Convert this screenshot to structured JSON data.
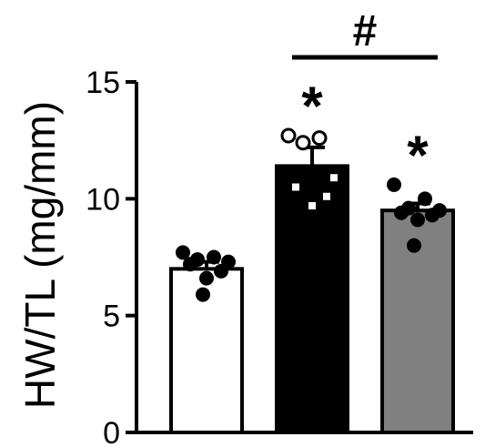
{
  "chart_data": {
    "type": "bar",
    "title": "",
    "xlabel": "",
    "ylabel": "HW/TL (mg/mm)",
    "ylim": [
      0,
      15
    ],
    "yticks": [
      0,
      5,
      10,
      15
    ],
    "grid": false,
    "legend": "none",
    "categories": [
      "",
      "",
      ""
    ],
    "series": [
      {
        "values": [
          7.0,
          11.4,
          9.5
        ],
        "errors": [
          0.3,
          0.8,
          0.3
        ],
        "fill_colors": [
          "#ffffff",
          "#000000",
          "#808080"
        ],
        "points": [
          [
            7.7,
            7.5,
            7.4,
            7.3,
            7.2,
            6.9,
            6.6,
            5.9
          ],
          [
            12.7,
            12.6,
            12.4,
            10.9,
            10.5,
            10.1,
            9.7
          ],
          [
            10.6,
            10.0,
            9.6,
            9.5,
            9.4,
            9.3,
            9.1,
            8.0
          ]
        ],
        "point_styles": [
          "filled-black",
          "open-on-black",
          "filled-black"
        ]
      }
    ],
    "annotations": {
      "bar_markers": [
        "",
        "*",
        "*"
      ],
      "bracket_marker": "#",
      "bracket_span": [
        2,
        3
      ]
    }
  }
}
